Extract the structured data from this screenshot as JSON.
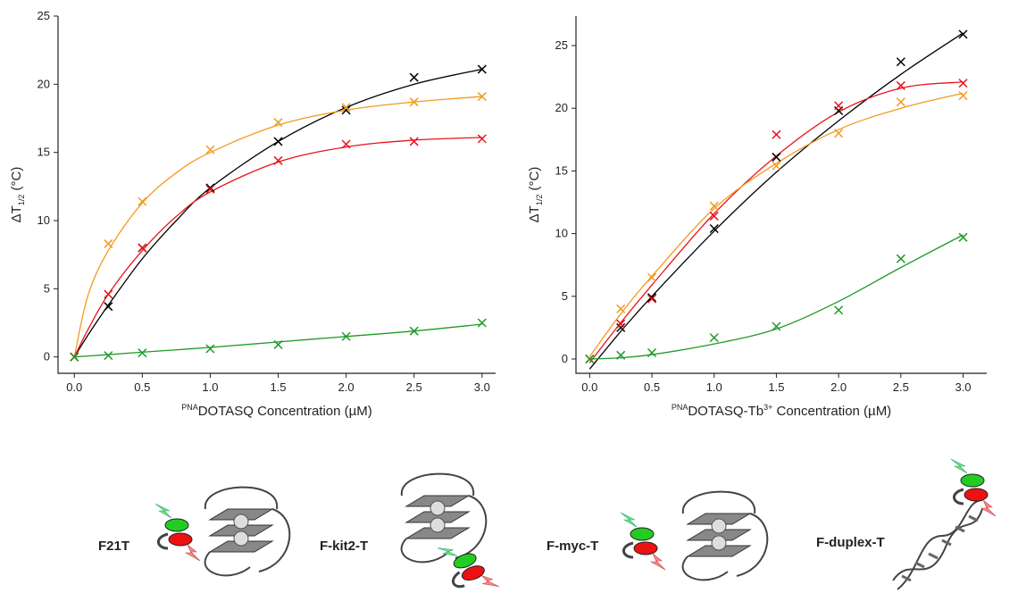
{
  "chart_data": [
    {
      "type": "scatter",
      "xlim": [
        -0.12,
        3.1
      ],
      "ylim": [
        -1.2,
        25
      ],
      "xticks": [
        {
          "value": 0,
          "label": "0.0"
        },
        {
          "value": 0.5,
          "label": "0.5"
        },
        {
          "value": 1,
          "label": "1.0"
        },
        {
          "value": 1.5,
          "label": "1.5"
        },
        {
          "value": 2,
          "label": "2.0"
        },
        {
          "value": 2.5,
          "label": "2.5"
        },
        {
          "value": 3,
          "label": "3.0"
        }
      ],
      "yticks": [
        0,
        5,
        10,
        15,
        20,
        25
      ],
      "xlabel": [
        "PNA",
        "DOTASQ Concentration (µM)"
      ],
      "ylabel": [
        "ΔT",
        "1/2",
        " (°C)"
      ],
      "series": [
        {
          "color": "#000000",
          "x": [
            0,
            0.25,
            0.5,
            1,
            1.5,
            2,
            2.5,
            3
          ],
          "values": [
            0,
            3.7,
            8.0,
            12.4,
            15.8,
            18.1,
            20.5,
            21.1
          ]
        },
        {
          "color": "#f39a1e",
          "x": [
            0,
            0.25,
            0.5,
            1,
            1.5,
            2,
            2.5,
            3
          ],
          "values": [
            0,
            8.3,
            11.4,
            15.2,
            17.2,
            18.3,
            18.7,
            19.1
          ]
        },
        {
          "color": "#e8141b",
          "x": [
            0,
            0.25,
            0.5,
            1,
            1.5,
            2,
            2.5,
            3
          ],
          "values": [
            0,
            4.6,
            8.0,
            12.3,
            14.4,
            15.6,
            15.8,
            16.0
          ]
        },
        {
          "color": "#1e9a28",
          "x": [
            0,
            0.25,
            0.5,
            1,
            1.5,
            2,
            2.5,
            3
          ],
          "values": [
            0,
            0.1,
            0.3,
            0.6,
            0.9,
            1.5,
            1.9,
            2.5
          ]
        }
      ],
      "fits": [
        {
          "color": "#000000",
          "x": [
            0,
            0.1,
            0.25,
            0.5,
            0.75,
            1,
            1.5,
            2,
            2.5,
            3
          ],
          "values": [
            0,
            1.6,
            3.8,
            7.2,
            10.0,
            12.4,
            15.8,
            18.3,
            20.0,
            21.1
          ]
        },
        {
          "color": "#f39a1e",
          "x": [
            0,
            0.1,
            0.25,
            0.5,
            0.75,
            1,
            1.5,
            2,
            2.5,
            3
          ],
          "values": [
            0,
            4.5,
            7.8,
            11.3,
            13.5,
            15.0,
            17.0,
            18.1,
            18.7,
            19.1
          ]
        },
        {
          "color": "#e8141b",
          "x": [
            0,
            0.1,
            0.25,
            0.5,
            0.75,
            1,
            1.5,
            2,
            2.5,
            3
          ],
          "values": [
            0,
            2.0,
            4.6,
            7.8,
            10.3,
            12.1,
            14.3,
            15.4,
            15.9,
            16.1
          ]
        },
        {
          "color": "#1e9a28",
          "x": [
            0,
            0.1,
            0.25,
            0.5,
            0.75,
            1,
            1.5,
            2,
            2.5,
            3
          ],
          "values": [
            0,
            0.07,
            0.17,
            0.35,
            0.52,
            0.7,
            1.1,
            1.5,
            1.9,
            2.4
          ]
        }
      ]
    },
    {
      "type": "scatter",
      "xlim": [
        -0.11,
        3.19
      ],
      "ylim": [
        -1.14,
        27.35
      ],
      "xticks": [
        {
          "value": 0,
          "label": "0.0"
        },
        {
          "value": 0.5,
          "label": "0.5"
        },
        {
          "value": 1,
          "label": "1.0"
        },
        {
          "value": 1.5,
          "label": "1.5"
        },
        {
          "value": 2,
          "label": "2.0"
        },
        {
          "value": 2.5,
          "label": "2.5"
        },
        {
          "value": 3,
          "label": "3.0"
        }
      ],
      "yticks": [
        0,
        5,
        10,
        15,
        20,
        25
      ],
      "xlabel": [
        "PNA",
        "DOTASQ-Tb",
        "3+",
        " Concentration (µM)"
      ],
      "ylabel": [
        "ΔT",
        "1/2",
        " (°C)"
      ],
      "series": [
        {
          "color": "#000000",
          "x": [
            0,
            0.25,
            0.5,
            1,
            1.5,
            2,
            2.5,
            3
          ],
          "values": [
            0,
            2.5,
            4.9,
            10.4,
            16.1,
            19.8,
            23.7,
            25.9
          ]
        },
        {
          "color": "#e8141b",
          "x": [
            0,
            0.25,
            0.5,
            1,
            1.5,
            2,
            2.5,
            3
          ],
          "values": [
            0,
            2.8,
            4.8,
            11.4,
            17.9,
            20.2,
            21.8,
            22.0
          ]
        },
        {
          "color": "#f39a1e",
          "x": [
            0,
            0.25,
            0.5,
            1,
            1.5,
            2,
            2.5,
            3
          ],
          "values": [
            0,
            4.0,
            6.5,
            12.2,
            15.4,
            18.0,
            20.5,
            21.0
          ]
        },
        {
          "color": "#1e9a28",
          "x": [
            0,
            0.25,
            0.5,
            1,
            1.5,
            2,
            2.5,
            3
          ],
          "values": [
            0,
            0.3,
            0.5,
            1.7,
            2.6,
            3.9,
            8.0,
            9.7
          ]
        }
      ],
      "fits": [
        {
          "color": "#000000",
          "x": [
            0,
            0.25,
            0.5,
            1,
            1.5,
            2,
            2.5,
            3
          ],
          "values": [
            -0.8,
            2.2,
            5.0,
            10.2,
            14.9,
            19.0,
            22.7,
            26.0
          ]
        },
        {
          "color": "#e8141b",
          "x": [
            0,
            0.25,
            0.5,
            1,
            1.5,
            2,
            2.5,
            3
          ],
          "values": [
            -0.3,
            2.9,
            5.9,
            11.6,
            16.2,
            19.7,
            21.6,
            22.1
          ]
        },
        {
          "color": "#f39a1e",
          "x": [
            0,
            0.25,
            0.5,
            1,
            1.5,
            2,
            2.5,
            3
          ],
          "values": [
            0.2,
            3.6,
            6.6,
            12.0,
            15.6,
            18.3,
            20.0,
            21.2
          ]
        },
        {
          "color": "#1e9a28",
          "x": [
            0,
            0.25,
            0.5,
            1,
            1.5,
            2,
            2.5,
            3
          ],
          "values": [
            0,
            0.1,
            0.35,
            1.2,
            2.4,
            4.6,
            7.3,
            9.9
          ]
        }
      ]
    }
  ],
  "constructs": [
    {
      "label": "F21T",
      "color": "#000000"
    },
    {
      "label": "F-kit2-T",
      "color": "#f39a1e"
    },
    {
      "label": "F-myc-T",
      "color": "#e8141b"
    },
    {
      "label": "F-duplex-T",
      "color": "#1e9a28"
    }
  ]
}
